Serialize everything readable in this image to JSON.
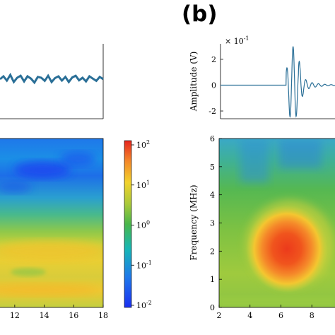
{
  "panel_label": "(b)",
  "chart_data": [
    {
      "id": "left-waveform",
      "type": "line",
      "title": "",
      "xlabel": "",
      "ylabel": "",
      "series": [
        {
          "values": [
            0.0,
            0.1,
            -0.05,
            0.15,
            -0.1,
            0.05,
            0.12,
            -0.08,
            0.1,
            0.02,
            -0.12,
            0.08,
            0.05,
            -0.06,
            0.12,
            -0.1,
            0.04,
            0.1,
            -0.05,
            0.08,
            -0.1,
            0.06,
            0.12,
            -0.04,
            0.05,
            -0.08,
            0.1,
            0.02,
            -0.06,
            0.08,
            0.0
          ]
        }
      ],
      "color": "#2a6f97"
    },
    {
      "id": "left-spectrogram",
      "type": "heatmap",
      "xlim": [
        11,
        18
      ],
      "x_ticks": [
        "12",
        "14",
        "16",
        "18"
      ],
      "colorbar": {
        "scale": "log",
        "ticks": [
          "10",
          "10",
          "10",
          "10",
          "10"
        ],
        "exponents": [
          "2",
          "1",
          "0",
          "-1",
          "-2"
        ],
        "colormap": "jet"
      }
    },
    {
      "id": "right-waveform",
      "type": "line",
      "title": "",
      "xlabel": "",
      "ylabel": "Amplitude (V)",
      "scale_label": "× 10",
      "scale_exponent": "-1",
      "y_ticks": [
        "2",
        "0",
        "-2"
      ],
      "ylim": [
        -2.6,
        3.2
      ],
      "x_range": [
        2.0,
        9.5
      ],
      "color": "#2a6f97"
    },
    {
      "id": "right-spectrogram",
      "type": "heatmap",
      "xlabel": "",
      "ylabel": "Frequency (MHz)",
      "xlim": [
        2,
        9.5
      ],
      "ylim": [
        0,
        6
      ],
      "x_ticks": [
        "2",
        "4",
        "6",
        "8"
      ],
      "y_ticks": [
        "0",
        "1",
        "2",
        "3",
        "4",
        "5",
        "6"
      ],
      "hotspot": {
        "x": 6.5,
        "y": 2.0,
        "value_log10": 2
      }
    }
  ]
}
